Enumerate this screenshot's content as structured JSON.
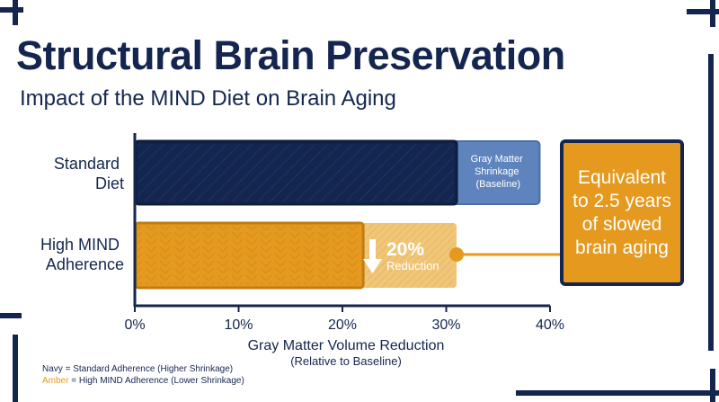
{
  "title": "Structural Brain Preservation",
  "subtitle": "Impact of the MIND Diet on Brain Aging",
  "colors": {
    "navy": "#14264f",
    "navy_light": "#5f84bd",
    "amber": "#e5991e",
    "amber_light": "#f0c77a",
    "white": "#ffffff"
  },
  "chart_data": {
    "type": "bar",
    "orientation": "horizontal",
    "categories": [
      "Standard Diet",
      "High MIND Adherence"
    ],
    "category_lines": [
      [
        "Standard",
        "Diet"
      ],
      [
        "High MIND",
        "Adherence"
      ]
    ],
    "values": [
      31,
      22
    ],
    "reference_values": [
      39,
      31
    ],
    "xlim": [
      0,
      40
    ],
    "xticks": [
      "0%",
      "10%",
      "20%",
      "30%",
      "40%"
    ],
    "xlabel": "Gray Matter Volume Reduction",
    "xlabel_sub": "(Relative to Baseline)",
    "annotations": {
      "standard_segment": [
        "Gray Matter",
        "Shrinkage",
        "(Baseline)"
      ],
      "reduction_value": "20%",
      "reduction_word": "Reduction"
    },
    "grid": false
  },
  "callout": {
    "text": "Equivalent to 2.5 years of slowed brain aging"
  },
  "legend": {
    "navy_prefix": "Navy",
    "navy_rest": " = Standard Adherence (Higher Shrinkage)",
    "amber_prefix": "Amber",
    "amber_rest": " = High MIND Adherence (Lower Shrinkage)"
  }
}
